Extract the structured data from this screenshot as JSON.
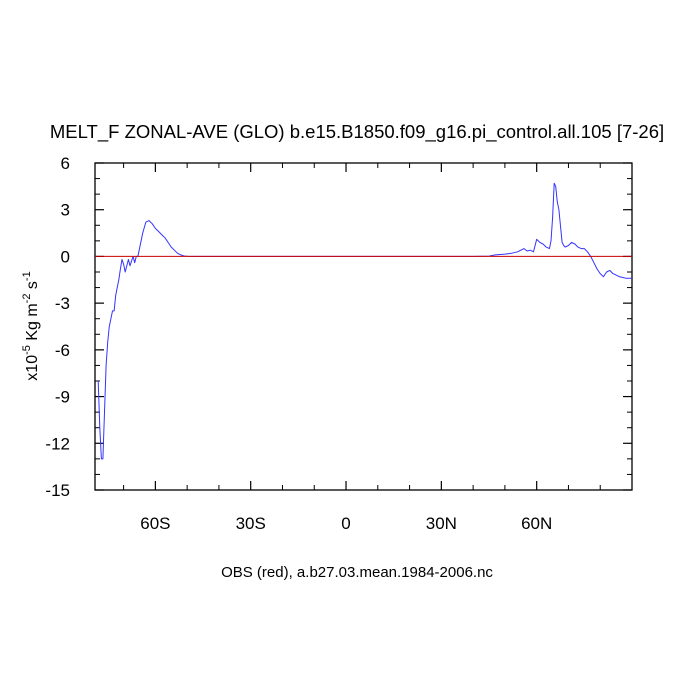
{
  "chart_data": {
    "type": "line",
    "title": "MELT_F ZONAL-AVE (GLO) b.e15.B1850.f09_g16.pi_control.all.105 [7-26]",
    "xlabel": "OBS (red), a.b27.03.mean.1984-2006.nc",
    "ylabel": {
      "prefix": "x10",
      "exp1": "-5",
      "units": " Kg m",
      "exp2": "-2",
      "units2": " s",
      "exp3": "-1"
    },
    "xlim": [
      -79,
      90
    ],
    "ylim": [
      -15,
      6
    ],
    "x_ticks": [
      {
        "value": -60,
        "label": "60S"
      },
      {
        "value": -30,
        "label": "30S"
      },
      {
        "value": 0,
        "label": "0"
      },
      {
        "value": 30,
        "label": "30N"
      },
      {
        "value": 60,
        "label": "60N"
      }
    ],
    "y_ticks": [
      {
        "value": 6,
        "label": "6"
      },
      {
        "value": 3,
        "label": "3"
      },
      {
        "value": 0,
        "label": "0"
      },
      {
        "value": -3,
        "label": "-3"
      },
      {
        "value": -6,
        "label": "-6"
      },
      {
        "value": -9,
        "label": "-9"
      },
      {
        "value": -12,
        "label": "-12"
      },
      {
        "value": -15,
        "label": "-15"
      }
    ],
    "series": [
      {
        "color": "#3333ff",
        "x": [
          -78,
          -77.5,
          -77,
          -76.5,
          -76,
          -75.5,
          -75,
          -74.5,
          -74,
          -73.5,
          -73,
          -72.5,
          -72,
          -71.5,
          -71,
          -70.5,
          -70,
          -69.5,
          -69,
          -68.5,
          -68,
          -67.5,
          -67,
          -66.5,
          -66,
          -65.5,
          -65,
          -64,
          -63,
          -62,
          -61,
          -60,
          -59,
          -58,
          -57,
          -56,
          -55,
          -54,
          -53,
          -52,
          -51,
          -50,
          -48,
          -45,
          -40,
          -30,
          -20,
          -10,
          0,
          10,
          20,
          30,
          40,
          45,
          47,
          50,
          52,
          54,
          55,
          56,
          57,
          58,
          59,
          60,
          61,
          62,
          63,
          64,
          64.5,
          65,
          65.5,
          66,
          66.5,
          67,
          68,
          68.5,
          69,
          70,
          71,
          72,
          73,
          74,
          75,
          76,
          77,
          78,
          79,
          80,
          81,
          82,
          83,
          84,
          85,
          86,
          87,
          88,
          89,
          90
        ],
        "y": [
          -8,
          -11,
          -13,
          -13,
          -10,
          -7,
          -5.5,
          -4.5,
          -4,
          -3.5,
          -3.5,
          -2.5,
          -2,
          -1.5,
          -0.8,
          -0.2,
          -0.5,
          -1,
          -0.6,
          -0.2,
          -0.6,
          -0.3,
          0,
          -0.4,
          0,
          0,
          0.5,
          1.5,
          2.2,
          2.3,
          2.1,
          1.8,
          1.6,
          1.4,
          1.2,
          0.9,
          0.6,
          0.4,
          0.2,
          0.1,
          0.03,
          0.01,
          0,
          0,
          0,
          0,
          0,
          0,
          0,
          0,
          0,
          0,
          0,
          0.02,
          0.1,
          0.15,
          0.2,
          0.3,
          0.4,
          0.5,
          0.35,
          0.4,
          0.3,
          1.1,
          0.9,
          0.8,
          0.6,
          0.5,
          1,
          2.5,
          4.7,
          4.5,
          3.5,
          3,
          0.9,
          0.7,
          0.6,
          0.7,
          0.9,
          0.8,
          0.6,
          0.5,
          0.5,
          0.3,
          0,
          -0.4,
          -0.8,
          -1.1,
          -1.3,
          -1.0,
          -0.9,
          -1.1,
          -1.2,
          -1.3,
          -1.35,
          -1.4,
          -1.4,
          -1.4
        ]
      },
      {
        "color": "#cc0000",
        "x": [
          -79,
          90
        ],
        "y": [
          0,
          0
        ]
      }
    ]
  }
}
